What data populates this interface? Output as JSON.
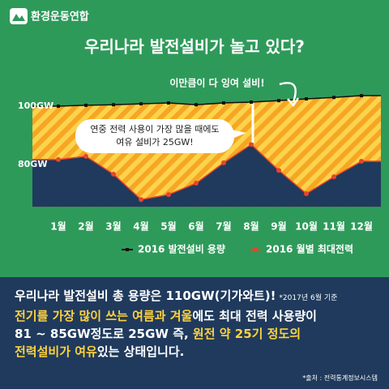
{
  "brand": "환경운동연합",
  "chart_data": {
    "type": "area-line",
    "title": "우리나라 발전설비가 놀고 있다?",
    "categories": [
      "1월",
      "2월",
      "3월",
      "4월",
      "5월",
      "6월",
      "7월",
      "8월",
      "9월",
      "10월",
      "11월",
      "12월"
    ],
    "series": [
      {
        "name": "2016 발전설비 용량",
        "color": "#111111",
        "fill": "stripes",
        "values": [
          100,
          100.3,
          100.5,
          100.8,
          101.1,
          100.5,
          101.1,
          101.4,
          101.9,
          102.5,
          103,
          103.6
        ]
      },
      {
        "name": "2016 월별 최대전력",
        "color": "#e8452c",
        "fill": "#1f3a5c",
        "values": [
          81.7,
          82.8,
          76.7,
          68,
          69.7,
          73.6,
          80.6,
          86.9,
          78,
          70,
          75.8,
          81.1
        ]
      }
    ],
    "ylim": [
      65.5,
      105.5
    ],
    "yticks": [
      {
        "value": 80,
        "label": "80GW"
      },
      {
        "value": 100,
        "label": "100GW"
      }
    ],
    "annotations": [
      "이만큼이 다 잉여 설비!",
      "연중 전력 사용이 가장 많을 때에도",
      "여유 설비가 25GW!"
    ],
    "legend": "bottom-right"
  },
  "footer": {
    "lines": [
      [
        {
          "text": "우리나라 발전설비 총 용량은 110GW(기가와트)!",
          "color": "#ffffff"
        }
      ],
      [
        {
          "text": "전기를 가장 많이 쓰는 여름과 겨울",
          "color": "#ffd23f"
        },
        {
          "text": "에도 최대 전력 사용량이",
          "color": "#ffffff"
        }
      ],
      [
        {
          "text": "81 ~ 85GW정도로 25GW 즉, ",
          "color": "#ffffff"
        },
        {
          "text": "원전 약 25기 정도의",
          "color": "#ffd23f"
        }
      ],
      [
        {
          "text": "전력설비가 여유",
          "color": "#ffd23f"
        },
        {
          "text": "있는 상태입니다.",
          "color": "#ffffff"
        }
      ]
    ],
    "note": "*2017년 6월 기준",
    "source": "*출처 : 전력통계정보시스템"
  }
}
